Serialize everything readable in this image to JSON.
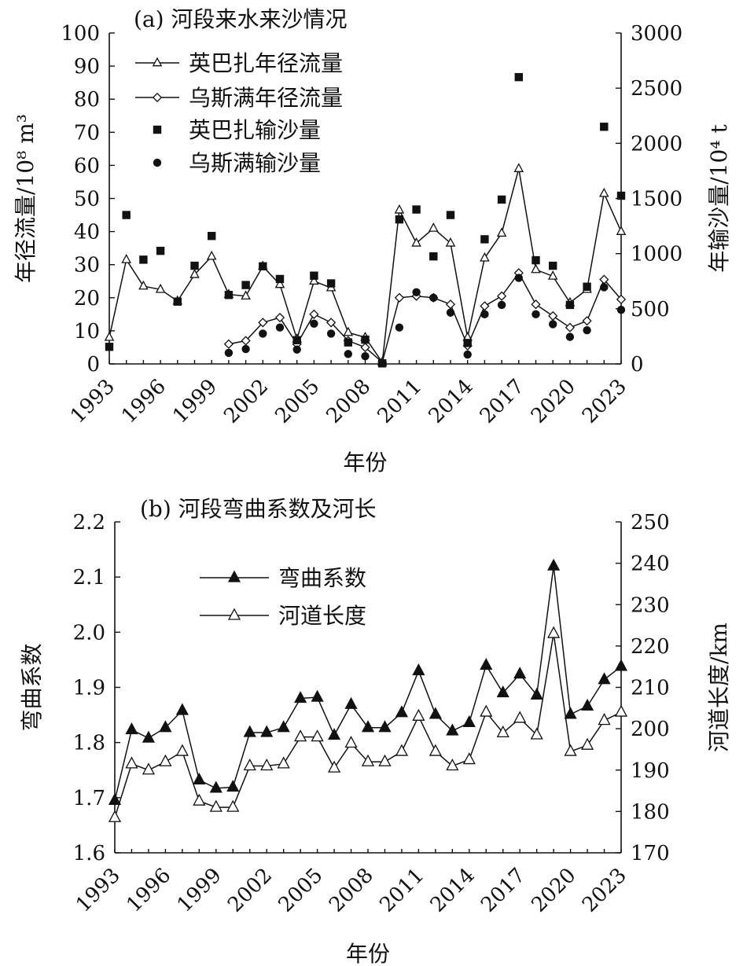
{
  "chart_data": [
    {
      "type": "line",
      "panel": "a",
      "title": "(a) 河段来水来沙情况",
      "xlabel": "年份",
      "ylabel": "年径流量/10⁸ m³",
      "ylabel_right": "年输沙量/10⁴ t",
      "ylim": [
        0,
        100
      ],
      "ylim_right": [
        0,
        3000
      ],
      "yticks": [
        "0",
        "10",
        "20",
        "30",
        "40",
        "50",
        "60",
        "70",
        "80",
        "90",
        "100"
      ],
      "yticks_right": [
        "0",
        "500",
        "1000",
        "1500",
        "2000",
        "2500",
        "3000"
      ],
      "xlim": [
        1993,
        2023
      ],
      "xticks": [
        "1993",
        "1996",
        "1999",
        "2002",
        "2005",
        "2008",
        "2011",
        "2014",
        "2017",
        "2020",
        "2023"
      ],
      "series": [
        {
          "name": "英巴扎年径流量",
          "axis": "left",
          "marker": "triangle-open",
          "x": [
            1993,
            1994,
            1995,
            1996,
            1997,
            1998,
            1999,
            2000,
            2001,
            2002,
            2003,
            2004,
            2005,
            2006,
            2007,
            2008,
            2009,
            2010,
            2011,
            2012,
            2013,
            2014,
            2015,
            2016,
            2017,
            2018,
            2019,
            2020,
            2021,
            2022,
            2023
          ],
          "values": [
            8,
            31.5,
            23.5,
            22.5,
            19,
            27,
            32.5,
            21,
            20.5,
            29.5,
            24,
            7.5,
            25,
            23,
            9.5,
            8,
            0.5,
            46.5,
            36.5,
            41,
            36.5,
            8,
            32,
            39.5,
            59,
            28.5,
            26.5,
            18.5,
            22.5,
            51.5,
            40
          ]
        },
        {
          "name": "乌斯满年径流量",
          "axis": "left",
          "marker": "diamond-open",
          "x": [
            2000,
            2001,
            2002,
            2003,
            2004,
            2005,
            2006,
            2007,
            2008,
            2009,
            2010,
            2011,
            2012,
            2013,
            2014,
            2015,
            2016,
            2017,
            2018,
            2019,
            2020,
            2021,
            2022,
            2023
          ],
          "values": [
            6,
            7,
            12.5,
            14,
            6,
            15,
            12.5,
            7,
            5,
            0.5,
            20,
            20.5,
            20,
            18,
            5.5,
            17.5,
            20.5,
            27.5,
            18,
            14.5,
            11,
            13,
            25.5,
            19.5
          ]
        },
        {
          "name": "英巴扎输沙量",
          "axis": "right",
          "marker": "square-filled",
          "x": [
            1993,
            1994,
            1995,
            1996,
            1997,
            1998,
            1999,
            2000,
            2001,
            2002,
            2003,
            2004,
            2005,
            2006,
            2007,
            2008,
            2009,
            2010,
            2011,
            2012,
            2013,
            2014,
            2015,
            2016,
            2017,
            2018,
            2019,
            2020,
            2021,
            2022,
            2023
          ],
          "values": [
            155,
            1350,
            945,
            1025,
            565,
            890,
            1160,
            625,
            715,
            885,
            770,
            215,
            800,
            730,
            195,
            220,
            5,
            1310,
            1400,
            975,
            1350,
            190,
            1130,
            1490,
            2600,
            940,
            890,
            535,
            700,
            2150,
            1525
          ]
        },
        {
          "name": "乌斯满输沙量",
          "axis": "right",
          "marker": "circle-filled",
          "x": [
            2000,
            2001,
            2002,
            2003,
            2004,
            2005,
            2006,
            2007,
            2008,
            2009,
            2010,
            2011,
            2012,
            2013,
            2014,
            2015,
            2016,
            2017,
            2018,
            2019,
            2020,
            2021,
            2022,
            2023
          ],
          "values": [
            100,
            135,
            275,
            330,
            130,
            365,
            275,
            90,
            70,
            5,
            330,
            650,
            600,
            465,
            85,
            450,
            535,
            780,
            450,
            360,
            245,
            305,
            695,
            490
          ]
        }
      ]
    },
    {
      "type": "line",
      "panel": "b",
      "title": "(b) 河段弯曲系数及河长",
      "xlabel": "年份",
      "ylabel": "弯曲系数",
      "ylabel_right": "河道长度/km",
      "ylim": [
        1.6,
        2.2
      ],
      "ylim_right": [
        170,
        250
      ],
      "yticks": [
        "1.6",
        "1.7",
        "1.8",
        "1.9",
        "2.0",
        "2.1",
        "2.2"
      ],
      "yticks_right": [
        "170",
        "180",
        "190",
        "200",
        "210",
        "220",
        "230",
        "240",
        "250"
      ],
      "xlim": [
        1993,
        2023
      ],
      "xticks": [
        "1993",
        "1996",
        "1999",
        "2002",
        "2005",
        "2008",
        "2011",
        "2014",
        "2017",
        "2020",
        "2023"
      ],
      "series": [
        {
          "name": "弯曲系数",
          "axis": "left",
          "marker": "triangle-filled",
          "x": [
            1993,
            1994,
            1995,
            1996,
            1997,
            1998,
            1999,
            2000,
            2001,
            2002,
            2003,
            2004,
            2005,
            2006,
            2007,
            2008,
            2009,
            2010,
            2011,
            2012,
            2013,
            2014,
            2015,
            2016,
            2017,
            2018,
            2019,
            2020,
            2021,
            2022,
            2023
          ],
          "values": [
            1.695,
            1.823,
            1.808,
            1.827,
            1.858,
            1.732,
            1.717,
            1.719,
            1.818,
            1.818,
            1.827,
            1.88,
            1.882,
            1.813,
            1.869,
            1.827,
            1.827,
            1.854,
            1.93,
            1.851,
            1.821,
            1.836,
            1.94,
            1.89,
            1.924,
            1.886,
            2.12,
            1.851,
            1.866,
            1.914,
            1.938
          ]
        },
        {
          "name": "河道长度",
          "axis": "right",
          "marker": "triangle-open",
          "x": [
            1993,
            1994,
            1995,
            1996,
            1997,
            1998,
            1999,
            2000,
            2001,
            2002,
            2003,
            2004,
            2005,
            2006,
            2007,
            2008,
            2009,
            2010,
            2011,
            2012,
            2013,
            2014,
            2015,
            2016,
            2017,
            2018,
            2019,
            2020,
            2021,
            2022,
            2023
          ],
          "values": [
            178.5,
            191.5,
            190,
            192,
            194.5,
            182.5,
            181,
            181,
            191,
            191,
            191.5,
            198,
            198,
            190.5,
            196.5,
            192,
            192,
            194.5,
            203,
            194.5,
            191,
            192.5,
            204,
            199,
            202.5,
            198.5,
            223,
            194.5,
            196,
            202,
            204
          ]
        }
      ]
    }
  ]
}
